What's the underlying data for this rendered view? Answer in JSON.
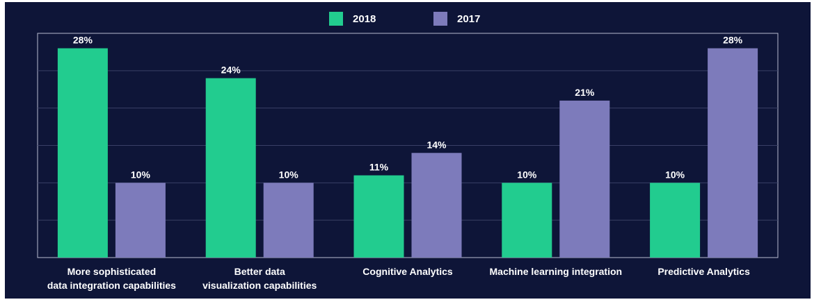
{
  "chart_data": {
    "type": "bar",
    "categories": [
      [
        "More sophisticated",
        "data integration capabilities"
      ],
      [
        "Better data",
        "visualization capabilities"
      ],
      [
        "Cognitive Analytics"
      ],
      [
        "Machine learning integration"
      ],
      [
        "Predictive Analytics"
      ]
    ],
    "series": [
      {
        "name": "2018",
        "values": [
          28,
          24,
          11,
          10,
          10
        ],
        "labels": [
          "28%",
          "24%",
          "11%",
          "10%",
          "10%"
        ],
        "color": "#22cc8f"
      },
      {
        "name": "2017",
        "values": [
          10,
          10,
          14,
          21,
          28
        ],
        "labels": [
          "10%",
          "10%",
          "14%",
          "21%",
          "28%"
        ],
        "color": "#7d7bbb"
      }
    ],
    "ylim": [
      0,
      30
    ],
    "grid": true,
    "legend_position": "top-center"
  },
  "colors": {
    "background": "#0e1538",
    "grid": "#3a4066",
    "axis": "#b8bccf"
  }
}
